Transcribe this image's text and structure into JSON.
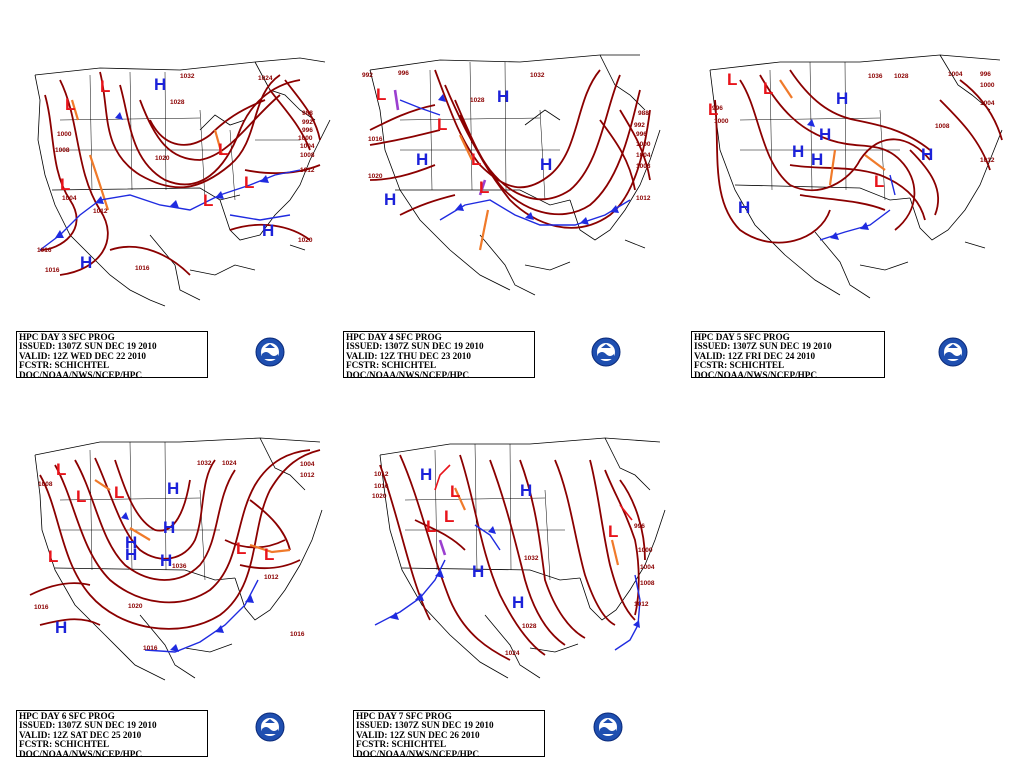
{
  "colors": {
    "isobar": "#8b0000",
    "high": "#1c22d9",
    "low": "#e8141b",
    "cold_front": "#1f2be0",
    "trough": "#f07a2a",
    "occluded": "#9b3fd0",
    "coast": "#000000"
  },
  "panels": [
    {
      "id": "day3",
      "info": {
        "title": "HPC DAY 3 SFC PROG",
        "issued": "ISSUED: 1307Z SUN DEC 19 2010",
        "valid": "VALID: 12Z WED DEC 22 2010",
        "forecaster": "FCSTR: SCHICHTEL",
        "agency": "DOC/NOAA/NWS/NCEP/HPC"
      },
      "highs": [
        "H",
        "H",
        "H"
      ],
      "lows": [
        "L",
        "L",
        "L",
        "L",
        "L",
        "L"
      ],
      "isobar_labels": [
        "1032",
        "1028",
        "1024",
        "1020",
        "1016",
        "1012",
        "1008",
        "1004",
        "1000",
        "996",
        "992",
        "988",
        "1000",
        "1008",
        "1004",
        "1016",
        "1020",
        "1016",
        "1012"
      ]
    },
    {
      "id": "day4",
      "info": {
        "title": "HPC DAY 4 SFC PROG",
        "issued": "ISSUED: 1307Z SUN DEC 19 2010",
        "valid": "VALID: 12Z THU DEC 23 2010",
        "forecaster": "FCSTR: SCHICHTEL",
        "agency": "DOC/NOAA/NWS/NCEP/HPC"
      },
      "highs": [
        "H",
        "H",
        "H",
        "H"
      ],
      "lows": [
        "L",
        "L",
        "L",
        "L"
      ],
      "isobar_labels": [
        "992",
        "996",
        "1032",
        "1028",
        "988",
        "992",
        "996",
        "1000",
        "1004",
        "1008",
        "1012",
        "1016",
        "1020"
      ]
    },
    {
      "id": "day5",
      "info": {
        "title": "HPC DAY 5 SFC PROG",
        "issued": "ISSUED: 1307Z SUN DEC 19 2010",
        "valid": "VALID: 12Z FRI DEC 24 2010",
        "forecaster": "FCSTR: SCHICHTEL",
        "agency": "DOC/NOAA/NWS/NCEP/HPC"
      },
      "highs": [
        "H",
        "H",
        "H",
        "H",
        "H",
        "H"
      ],
      "lows": [
        "L",
        "L",
        "L",
        "L"
      ],
      "isobar_labels": [
        "1036",
        "1028",
        "1004",
        "996",
        "1000",
        "1004",
        "1008",
        "1012",
        "996",
        "1000"
      ]
    },
    {
      "id": "day6",
      "info": {
        "title": "HPC DAY 6 SFC PROG",
        "issued": "ISSUED: 1307Z SUN DEC 19 2010",
        "valid": "VALID: 12Z SAT DEC 25 2010",
        "forecaster": "FCSTR: SCHICHTEL",
        "agency": "DOC/NOAA/NWS/NCEP/HPC"
      },
      "highs": [
        "H",
        "H",
        "H",
        "H",
        "H",
        "H"
      ],
      "lows": [
        "L",
        "L",
        "L",
        "L",
        "L",
        "L"
      ],
      "isobar_labels": [
        "1032",
        "1024",
        "1008",
        "1016",
        "1004",
        "1012",
        "1036",
        "1020",
        "1016",
        "1016",
        "1012"
      ]
    },
    {
      "id": "day7",
      "info": {
        "title": "HPC DAY 7 SFC PROG",
        "issued": "ISSUED: 1307Z SUN DEC 19 2010",
        "valid": "VALID: 12Z SUN DEC 26 2010",
        "forecaster": "FCSTR: SCHICHTEL",
        "agency": "DOC/NOAA/NWS/NCEP/HPC"
      },
      "highs": [
        "H",
        "H",
        "H",
        "H"
      ],
      "lows": [
        "L",
        "L",
        "L",
        "L"
      ],
      "isobar_labels": [
        "1012",
        "1016",
        "1020",
        "1032",
        "1028",
        "1024",
        "1000",
        "1004",
        "1008",
        "1012",
        "996"
      ]
    }
  ]
}
